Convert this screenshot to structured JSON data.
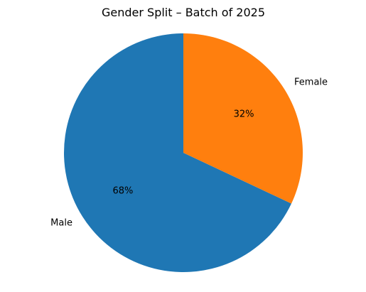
{
  "chart_data": {
    "type": "pie",
    "title": "Gender Split – Batch of 2025",
    "slices": [
      {
        "label": "Male",
        "value": 68,
        "pct_label": "68%",
        "color": "#1f77b4"
      },
      {
        "label": "Female",
        "value": 32,
        "pct_label": "32%",
        "color": "#ff7f0e"
      }
    ],
    "start_angle_deg": 90,
    "direction": "counterclockwise"
  }
}
